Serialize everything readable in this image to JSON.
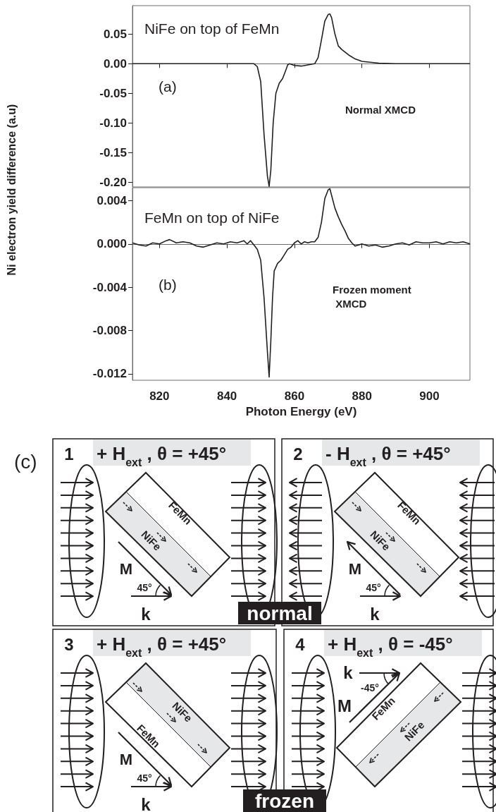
{
  "chart_data": [
    {
      "type": "line",
      "ylabel": "Ni electron yield difference (a.u)",
      "color": "#231f20",
      "x": [
        812,
        820,
        830,
        840,
        845,
        848,
        849,
        850,
        851,
        852,
        852.5,
        853,
        853.7,
        854.5,
        855.5,
        856.5,
        857.5,
        858,
        858.5,
        860,
        862,
        864,
        866,
        867,
        868,
        869,
        870,
        870.5,
        871,
        872,
        873,
        874,
        876,
        878,
        880,
        885,
        890,
        900,
        912
      ],
      "values": [
        0,
        0,
        0,
        0,
        0,
        0,
        -0.005,
        -0.03,
        -0.12,
        -0.19,
        -0.207,
        -0.18,
        -0.1,
        -0.05,
        -0.033,
        -0.025,
        -0.01,
        -0.002,
        0,
        -0.003,
        -0.004,
        -0.002,
        0,
        0.01,
        0.04,
        0.072,
        0.083,
        0.084,
        0.078,
        0.05,
        0.03,
        0.024,
        0.015,
        0.008,
        0.004,
        0.001,
        0,
        0,
        0
      ],
      "xlim": [
        812,
        912
      ],
      "ylim": [
        -0.208,
        0.098
      ],
      "xticks": [
        820,
        840,
        860,
        880,
        900
      ],
      "yticks": [
        0.05,
        {
          "value": 0,
          "label": "0.00"
        },
        -0.05,
        {
          "value": -0.1,
          "label": "-0.10"
        },
        -0.15,
        {
          "value": -0.2,
          "label": "-0.20"
        }
      ],
      "tick_labels": "y",
      "annotations": [
        "NiFe on top of FeMn",
        "(a)",
        "Normal XMCD"
      ]
    },
    {
      "type": "line",
      "xlabel": "Photon Energy (eV)",
      "color": "#231f20",
      "x": [
        812,
        814,
        816,
        818,
        820,
        822,
        823,
        825,
        827,
        829,
        831,
        833,
        835,
        837,
        839,
        841,
        843,
        845,
        846,
        847,
        848,
        849,
        850,
        851,
        852,
        852.5,
        853,
        853.5,
        854,
        855,
        856,
        857,
        858,
        859,
        860,
        861,
        862,
        863,
        864,
        865,
        866,
        867,
        868,
        869,
        870,
        870.5,
        871,
        872,
        873,
        874,
        875,
        876,
        877,
        878,
        880,
        882,
        884,
        886,
        888,
        890,
        892,
        894,
        896,
        898,
        900,
        902,
        904,
        906,
        908,
        910,
        912
      ],
      "values": [
        0.0001,
        -0.0001,
        -0.0002,
        0.0001,
        0,
        0.0003,
        0.0004,
        0.0001,
        0.0002,
        0.0001,
        -0.0002,
        -0.0003,
        -0.0001,
        0.0001,
        0,
        0.0002,
        0.0001,
        0.0003,
        0,
        0.0003,
        -0.0001,
        -0.0005,
        -0.0015,
        -0.005,
        -0.01,
        -0.0123,
        -0.009,
        -0.005,
        -0.0025,
        -0.0018,
        -0.0015,
        -0.001,
        -0.0005,
        -0.0003,
        0.0001,
        0.0003,
        0,
        0.0002,
        0.0001,
        0.0002,
        0.0002,
        0.0006,
        0.002,
        0.0042,
        0.005,
        0.0051,
        0.0045,
        0.0033,
        0.0025,
        0.0018,
        0.0012,
        0.0005,
        0.0001,
        -0.0002,
        0,
        -0.0002,
        -0.0001,
        -0.0003,
        -0.0002,
        0,
        0.0001,
        -0.0001,
        0.0002,
        0.0001,
        0.0001,
        0.0002,
        0,
        0.0002,
        0.0001,
        0.0002,
        0
      ],
      "xlim": [
        812,
        912
      ],
      "ylim": [
        -0.0126,
        0.0052
      ],
      "xticks": [
        820,
        840,
        860,
        880,
        900
      ],
      "yticks": [
        0.004,
        {
          "value": 0,
          "label": "0.000"
        },
        -0.004,
        -0.008,
        -0.012
      ],
      "annotations": [
        "FeMn on top of NiFe",
        "(b)",
        "Frozen moment\n XMCD"
      ]
    },
    {
      "type": "other",
      "annotations": [
        "(c)",
        "1",
        "+ H$_{ext}$ , θ = +45°",
        "FeMn",
        "NiFe",
        "M",
        "45°",
        "k",
        "2",
        "- H$_{ext}$ , θ = +45°",
        "FeMn",
        "NiFe",
        "M",
        "45°",
        "k",
        "3",
        "+ H$_{ext}$ , θ = +45°",
        "FeMn",
        "NiFe",
        "M",
        "45°",
        "k",
        "4",
        "+ H$_{ext}$ , θ = -45°",
        "FeMn",
        "NiFe",
        "M",
        "-45°",
        "k",
        "normal",
        "frozen"
      ]
    }
  ]
}
